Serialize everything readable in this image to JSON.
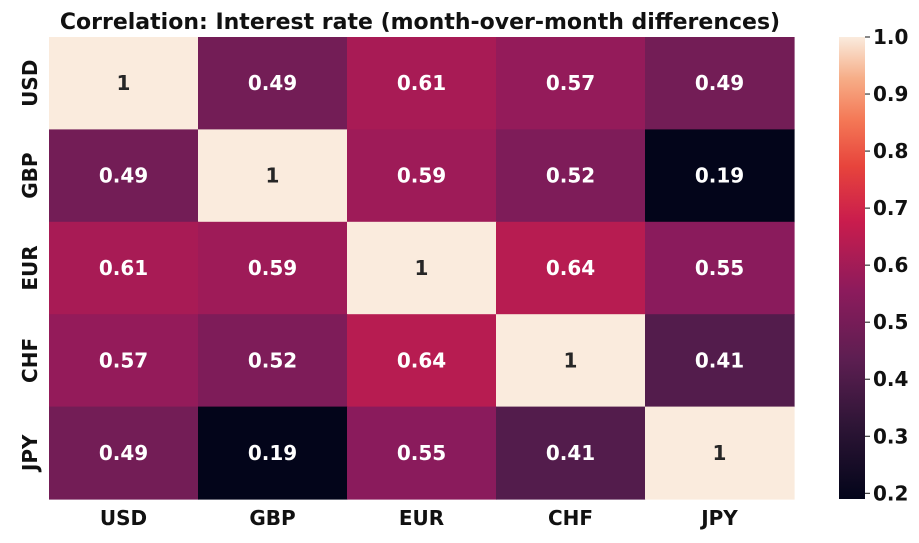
{
  "chart_data": {
    "type": "heatmap",
    "title": "Correlation: Interest rate (month-over-month differences)",
    "xlabel": "",
    "ylabel": "",
    "x_categories": [
      "USD",
      "GBP",
      "EUR",
      "CHF",
      "JPY"
    ],
    "y_categories": [
      "USD",
      "GBP",
      "EUR",
      "CHF",
      "JPY"
    ],
    "values": [
      [
        1,
        0.49,
        0.61,
        0.57,
        0.49
      ],
      [
        0.49,
        1,
        0.59,
        0.52,
        0.19
      ],
      [
        0.61,
        0.59,
        1,
        0.64,
        0.55
      ],
      [
        0.57,
        0.52,
        0.64,
        1,
        0.41
      ],
      [
        0.49,
        0.19,
        0.55,
        0.41,
        1
      ]
    ],
    "cell_labels": [
      [
        "1",
        "0.49",
        "0.61",
        "0.57",
        "0.49"
      ],
      [
        "0.49",
        "1",
        "0.59",
        "0.52",
        "0.19"
      ],
      [
        "0.61",
        "0.59",
        "1",
        "0.64",
        "0.55"
      ],
      [
        "0.57",
        "0.52",
        "0.64",
        "1",
        "0.41"
      ],
      [
        "0.49",
        "0.19",
        "0.55",
        "0.41",
        "1"
      ]
    ],
    "colorbar": {
      "range": [
        0.19,
        1.0
      ],
      "ticks": [
        "0.2",
        "0.3",
        "0.4",
        "0.5",
        "0.6",
        "0.7",
        "0.8",
        "0.9",
        "1.0"
      ],
      "tick_values": [
        0.2,
        0.3,
        0.4,
        0.5,
        0.6,
        0.7,
        0.8,
        0.9,
        1.0
      ],
      "colormap": "rocket",
      "placement": "right"
    },
    "grid": false
  }
}
